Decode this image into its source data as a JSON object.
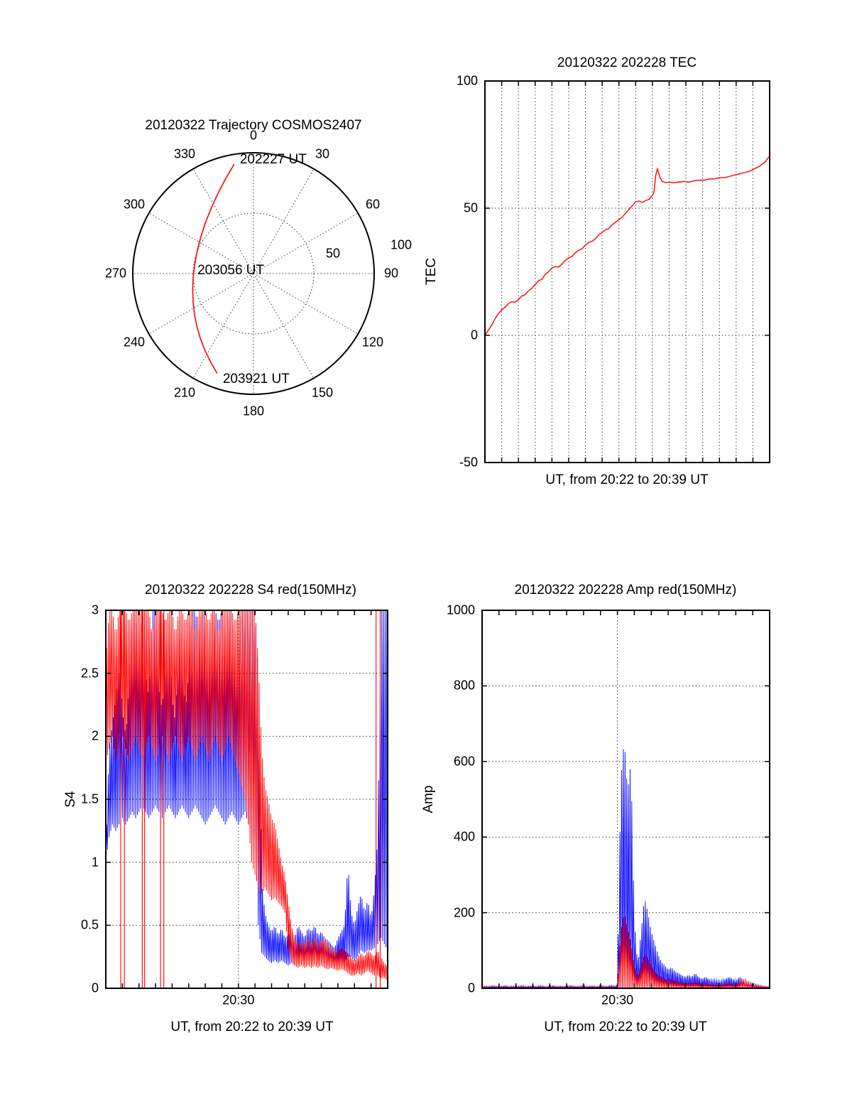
{
  "figure": {
    "background": "#ffffff"
  },
  "colors": {
    "red": "#ff0000",
    "blue": "#0000ff",
    "axis": "#000000",
    "grid": "#333333"
  },
  "chart_data": [
    {
      "id": "trajectory",
      "type": "polar-line",
      "title": "20120322 Trajectory COSMOS2407",
      "azimuth_ticks": [
        0,
        30,
        60,
        90,
        120,
        150,
        180,
        210,
        240,
        270,
        300,
        330
      ],
      "radial_ticks": [
        50,
        100
      ],
      "radial_max": 100,
      "grid": "dotted spokes every 30 deg, dotted circle at r=50",
      "annotations": [
        {
          "label": "202227 UT",
          "anchor": "start"
        },
        {
          "label": "203056 UT",
          "anchor": "mid"
        },
        {
          "label": "203921 UT",
          "anchor": "end"
        }
      ],
      "series": [
        {
          "name": "COSMOS2407 pass",
          "color": "#ff0000",
          "points_az_r": [
            [
              350.0,
              92.0
            ],
            [
              343.5,
              81.6
            ],
            [
              335.9,
              72.4
            ],
            [
              327.1,
              64.4
            ],
            [
              316.9,
              58.1
            ],
            [
              305.3,
              53.3
            ],
            [
              292.7,
              50.4
            ],
            [
              279.7,
              49.3
            ],
            [
              267.0,
              50.0
            ],
            [
              255.2,
              52.1
            ],
            [
              244.4,
              55.4
            ],
            [
              235.0,
              59.6
            ],
            [
              226.5,
              64.4
            ],
            [
              219.0,
              69.7
            ],
            [
              212.1,
              75.4
            ],
            [
              205.8,
              81.5
            ],
            [
              200.0,
              88.0
            ]
          ]
        }
      ]
    },
    {
      "id": "tec",
      "type": "line",
      "title": "20120322 202228 TEC",
      "ylabel": "TEC",
      "xlabel": "UT, from 20:22 to 20:39 UT",
      "x_start": "20:22",
      "x_end": "20:39",
      "x_span_minutes": 17,
      "ylim": [
        -50,
        100
      ],
      "yticks": [
        -50,
        0,
        50,
        100
      ],
      "grid": {
        "vertical_every_minutes": 1,
        "horizontal_at": [
          0,
          50
        ]
      },
      "series": [
        {
          "name": "TEC",
          "color": "#ff0000",
          "points_t_v": [
            [
              0,
              0
            ],
            [
              0.2,
              2
            ],
            [
              0.4,
              4
            ],
            [
              0.6,
              6.5
            ],
            [
              0.8,
              8.5
            ],
            [
              1,
              10
            ],
            [
              1.2,
              11
            ],
            [
              1.4,
              12.5
            ],
            [
              1.6,
              13.2
            ],
            [
              1.8,
              13
            ],
            [
              2,
              14
            ],
            [
              2.2,
              15.5
            ],
            [
              2.4,
              16
            ],
            [
              2.6,
              17.5
            ],
            [
              2.8,
              18.5
            ],
            [
              3,
              20
            ],
            [
              3.2,
              21.5
            ],
            [
              3.4,
              22
            ],
            [
              3.6,
              24
            ],
            [
              3.8,
              25
            ],
            [
              4,
              26.5
            ],
            [
              4.2,
              27
            ],
            [
              4.4,
              26.8
            ],
            [
              4.6,
              28
            ],
            [
              4.8,
              29.5
            ],
            [
              5,
              30.5
            ],
            [
              5.2,
              31
            ],
            [
              5.4,
              32.5
            ],
            [
              5.6,
              33.5
            ],
            [
              5.8,
              34
            ],
            [
              6,
              35.5
            ],
            [
              6.2,
              36.5
            ],
            [
              6.4,
              37
            ],
            [
              6.6,
              38
            ],
            [
              6.8,
              39.5
            ],
            [
              7,
              40.5
            ],
            [
              7.2,
              41.5
            ],
            [
              7.4,
              42
            ],
            [
              7.6,
              43.5
            ],
            [
              7.8,
              44.5
            ],
            [
              8,
              45.5
            ],
            [
              8.2,
              46.5
            ],
            [
              8.4,
              48
            ],
            [
              8.6,
              49.5
            ],
            [
              8.8,
              51
            ],
            [
              9,
              52.5
            ],
            [
              9.2,
              52.8
            ],
            [
              9.4,
              52.3
            ],
            [
              9.6,
              53
            ],
            [
              9.8,
              53.5
            ],
            [
              10,
              55
            ],
            [
              10.1,
              56.5
            ],
            [
              10.2,
              63
            ],
            [
              10.3,
              65.5
            ],
            [
              10.45,
              62
            ],
            [
              10.6,
              60.5
            ],
            [
              10.8,
              60
            ],
            [
              11,
              60.2
            ],
            [
              11.3,
              60
            ],
            [
              11.6,
              60.3
            ],
            [
              11.9,
              60.5
            ],
            [
              12.2,
              60.2
            ],
            [
              12.5,
              60.8
            ],
            [
              12.8,
              61
            ],
            [
              13.1,
              61
            ],
            [
              13.4,
              61.5
            ],
            [
              13.7,
              61.5
            ],
            [
              14,
              62
            ],
            [
              14.3,
              62
            ],
            [
              14.6,
              62.5
            ],
            [
              14.9,
              63
            ],
            [
              15.2,
              63.5
            ],
            [
              15.5,
              64
            ],
            [
              15.8,
              64.5
            ],
            [
              16.1,
              65.5
            ],
            [
              16.4,
              66.5
            ],
            [
              16.7,
              68
            ],
            [
              17,
              70.5
            ]
          ]
        }
      ]
    },
    {
      "id": "s4",
      "type": "envelope",
      "title": "20120322 202228 S4 red(150MHz)",
      "ylabel": "S4",
      "xlabel": "UT, from 20:22 to 20:39 UT",
      "x_start": "20:22",
      "x_end": "20:39",
      "x_span_minutes": 17,
      "ylim": [
        0,
        3
      ],
      "yticks": [
        0,
        0.5,
        1,
        1.5,
        2,
        2.5,
        3
      ],
      "xticks": [
        {
          "t": 8,
          "label": "20:30"
        }
      ],
      "grid": {
        "vertical_at_minutes": [
          8
        ],
        "horizontal_at": [
          0.5,
          1,
          1.5,
          2,
          2.5
        ]
      },
      "bin_minutes": 0.2,
      "series": [
        {
          "name": "S4 blue",
          "color": "#0000ff",
          "lo": [
            1.0,
            1.2,
            1.3,
            1.25,
            1.3,
            1.35,
            1.3,
            1.35,
            1.4,
            1.35,
            1.4,
            1.45,
            1.4,
            1.35,
            1.4,
            1.45,
            1.4,
            1.35,
            1.4,
            1.45,
            1.4,
            1.35,
            1.4,
            1.45,
            1.4,
            1.35,
            1.4,
            1.45,
            1.4,
            1.35,
            1.3,
            1.35,
            1.4,
            1.45,
            1.4,
            1.35,
            1.3,
            1.35,
            1.4,
            1.35,
            1.3,
            1.35,
            1.4,
            1.3,
            1.25,
            1.2,
            0.5,
            0.28,
            0.25,
            0.22,
            0.2,
            0.22,
            0.2,
            0.22,
            0.2,
            0.18,
            0.2,
            0.18,
            0.2,
            0.22,
            0.2,
            0.22,
            0.2,
            0.22,
            0.2,
            0.22,
            0.2,
            0.18,
            0.2,
            0.18,
            0.2,
            0.22,
            0.2,
            0.25,
            0.25,
            0.22,
            0.25,
            0.3,
            0.28,
            0.3,
            0.3,
            0.32,
            0.35,
            0.4,
            0.35,
            0.3
          ],
          "hi": [
            1.1,
            1.9,
            2.1,
            2.3,
            2.6,
            2.2,
            2.0,
            2.4,
            3.0,
            3.0,
            2.6,
            3.0,
            2.5,
            2.3,
            3.0,
            3.0,
            2.4,
            2.2,
            2.6,
            3.0,
            2.3,
            2.1,
            3.0,
            2.7,
            2.2,
            2.5,
            3.0,
            3.0,
            2.8,
            3.0,
            3.0,
            2.6,
            3.0,
            3.0,
            2.9,
            3.0,
            2.7,
            3.0,
            3.0,
            2.5,
            2.8,
            3.0,
            3.0,
            3.0,
            3.0,
            3.0,
            2.5,
            0.85,
            0.6,
            0.5,
            0.45,
            0.5,
            0.42,
            0.48,
            0.4,
            0.42,
            0.45,
            0.4,
            0.5,
            0.45,
            0.4,
            0.48,
            0.45,
            0.5,
            0.42,
            0.45,
            0.4,
            0.38,
            0.35,
            0.32,
            0.4,
            0.45,
            0.5,
            1.0,
            0.6,
            0.5,
            0.65,
            0.75,
            0.6,
            0.7,
            0.55,
            0.8,
            1.2,
            3.0,
            3.0,
            3.0
          ]
        },
        {
          "name": "S4 red (150MHz)",
          "color": "#ff0000",
          "lo": [
            1.8,
            1.9,
            2.0,
            1.8,
            1.9,
            2.0,
            1.9,
            1.8,
            1.9,
            2.0,
            1.9,
            1.8,
            1.9,
            2.0,
            1.9,
            1.8,
            1.9,
            2.0,
            1.9,
            1.8,
            1.9,
            2.0,
            1.9,
            1.8,
            1.9,
            2.0,
            1.9,
            1.8,
            1.9,
            2.0,
            1.9,
            1.8,
            1.9,
            2.0,
            1.9,
            1.8,
            1.9,
            2.0,
            1.9,
            1.8,
            1.7,
            1.6,
            1.5,
            1.3,
            1.0,
            0.9,
            0.8,
            0.75,
            0.8,
            0.75,
            0.7,
            0.72,
            0.68,
            0.65,
            0.6,
            0.3,
            0.2,
            0.18,
            0.16,
            0.18,
            0.16,
            0.18,
            0.16,
            0.18,
            0.16,
            0.18,
            0.16,
            0.15,
            0.16,
            0.15,
            0.14,
            0.15,
            0.14,
            0.12,
            0.1,
            0.1,
            0.12,
            0.1,
            0.12,
            0.14,
            0.12,
            0.1,
            0.1,
            0.08,
            0.08,
            0.06
          ],
          "hi": [
            2.6,
            3.0,
            3.0,
            2.8,
            3.0,
            3.0,
            3.0,
            2.9,
            3.0,
            3.0,
            3.0,
            3.0,
            3.0,
            3.0,
            2.8,
            3.0,
            3.0,
            3.0,
            2.9,
            3.0,
            3.0,
            2.8,
            3.0,
            3.0,
            2.9,
            3.0,
            3.0,
            2.8,
            3.0,
            3.0,
            3.0,
            2.9,
            3.0,
            3.0,
            2.8,
            3.0,
            3.0,
            3.0,
            3.0,
            2.9,
            3.0,
            3.0,
            3.0,
            3.0,
            3.0,
            3.0,
            2.6,
            1.9,
            1.6,
            1.5,
            1.35,
            1.3,
            1.15,
            1.0,
            0.9,
            0.7,
            0.5,
            0.4,
            0.35,
            0.38,
            0.35,
            0.4,
            0.35,
            0.42,
            0.35,
            0.38,
            0.4,
            0.35,
            0.32,
            0.3,
            0.3,
            0.32,
            0.3,
            0.28,
            0.25,
            0.22,
            0.25,
            0.28,
            0.25,
            0.3,
            0.28,
            0.25,
            0.3,
            0.25,
            0.2,
            0.18
          ],
          "full_height_spikes_at_minutes": [
            0.9,
            1.12,
            2.2,
            2.34,
            3.3,
            3.5,
            16.3,
            16.55
          ]
        }
      ]
    },
    {
      "id": "amp",
      "type": "envelope",
      "title": "20120322 202228 Amp red(150MHz)",
      "ylabel": "Amp",
      "xlabel": "UT, from 20:22 to 20:39 UT",
      "x_start": "20:22",
      "x_end": "20:39",
      "x_span_minutes": 17,
      "ylim": [
        0,
        1000
      ],
      "yticks": [
        0,
        200,
        400,
        600,
        800,
        1000
      ],
      "xticks": [
        {
          "t": 8,
          "label": "20:30"
        }
      ],
      "grid": {
        "vertical_at_minutes": [
          8
        ],
        "horizontal_at": [
          200,
          400,
          600,
          800
        ]
      },
      "bin_minutes": 0.2,
      "series": [
        {
          "name": "Amp blue",
          "color": "#0000ff",
          "lo": 0,
          "hi": [
            5,
            6,
            5,
            7,
            6,
            5,
            6,
            7,
            5,
            6,
            5,
            6,
            7,
            5,
            6,
            6,
            5,
            7,
            6,
            5,
            6,
            7,
            5,
            6,
            5,
            6,
            7,
            6,
            5,
            6,
            7,
            5,
            6,
            6,
            5,
            7,
            6,
            5,
            8,
            6,
            7,
            550,
            660,
            520,
            600,
            180,
            60,
            150,
            240,
            200,
            150,
            120,
            90,
            70,
            60,
            50,
            55,
            45,
            40,
            35,
            30,
            35,
            30,
            40,
            30,
            25,
            30,
            25,
            20,
            22,
            18,
            20,
            25,
            30,
            25,
            20,
            30,
            25,
            18,
            15,
            12,
            10,
            8,
            6,
            5,
            4
          ]
        },
        {
          "name": "Amp red (150MHz)",
          "color": "#ff0000",
          "lo": 0,
          "hi": [
            3,
            4,
            3,
            4,
            3,
            4,
            4,
            3,
            4,
            3,
            4,
            3,
            4,
            4,
            3,
            4,
            3,
            4,
            3,
            4,
            4,
            3,
            4,
            3,
            4,
            3,
            4,
            4,
            3,
            4,
            3,
            4,
            3,
            4,
            4,
            3,
            4,
            3,
            4,
            4,
            3,
            150,
            200,
            160,
            120,
            60,
            30,
            60,
            90,
            80,
            60,
            45,
            35,
            30,
            25,
            22,
            20,
            18,
            15,
            15,
            12,
            14,
            12,
            15,
            12,
            10,
            12,
            10,
            9,
            8,
            8,
            9,
            10,
            12,
            10,
            8,
            15,
            22,
            18,
            12,
            10,
            8,
            6,
            5,
            4,
            3
          ]
        }
      ]
    }
  ]
}
